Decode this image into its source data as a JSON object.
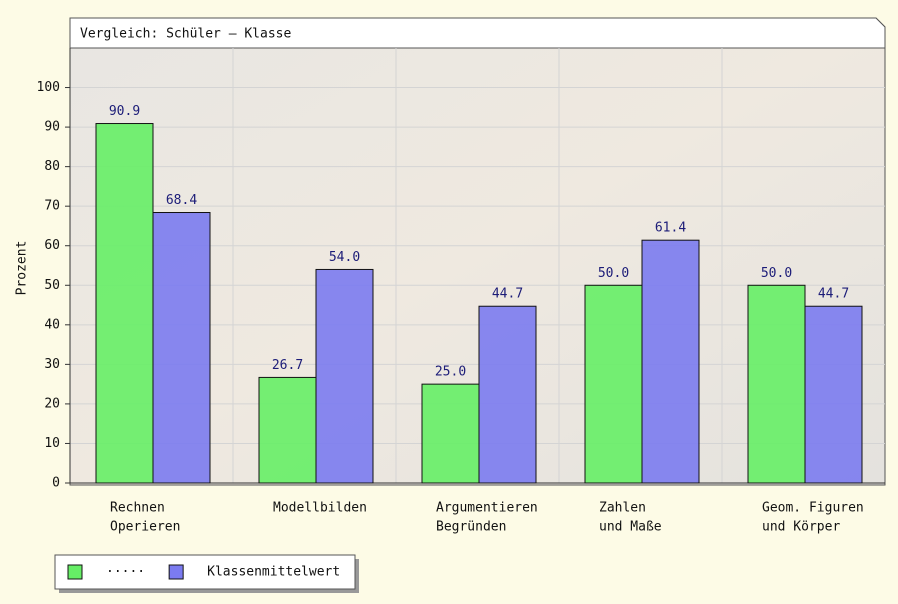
{
  "chart_data": {
    "type": "bar",
    "title": "Vergleich: Schüler – Klasse",
    "y_label": "Prozent",
    "categories": [
      [
        "Rechnen",
        "Operieren"
      ],
      [
        "Modellbilden"
      ],
      [
        "Argumentieren",
        "Begründen"
      ],
      [
        "Zahlen",
        "und Maße"
      ],
      [
        "Geom. Figuren",
        "und Körper"
      ]
    ],
    "series": [
      {
        "name": "·····",
        "color": "#66ee66",
        "values": [
          90.9,
          26.7,
          25.0,
          50.0,
          50.0
        ],
        "value_labels": [
          "90.9",
          "26.7",
          "25.0",
          "50.0",
          "50.0"
        ]
      },
      {
        "name": "Klassenmittelwert",
        "color": "#7b7bf0",
        "values": [
          68.4,
          54.0,
          44.7,
          61.4,
          44.7
        ],
        "value_labels": [
          "68.4",
          "54.0",
          "44.7",
          "61.4",
          "44.7"
        ]
      }
    ],
    "ylim": [
      0,
      110
    ],
    "yticks": [
      0,
      10,
      20,
      30,
      40,
      50,
      60,
      70,
      80,
      90,
      100
    ],
    "grid": true,
    "legend": "bottom-left"
  }
}
